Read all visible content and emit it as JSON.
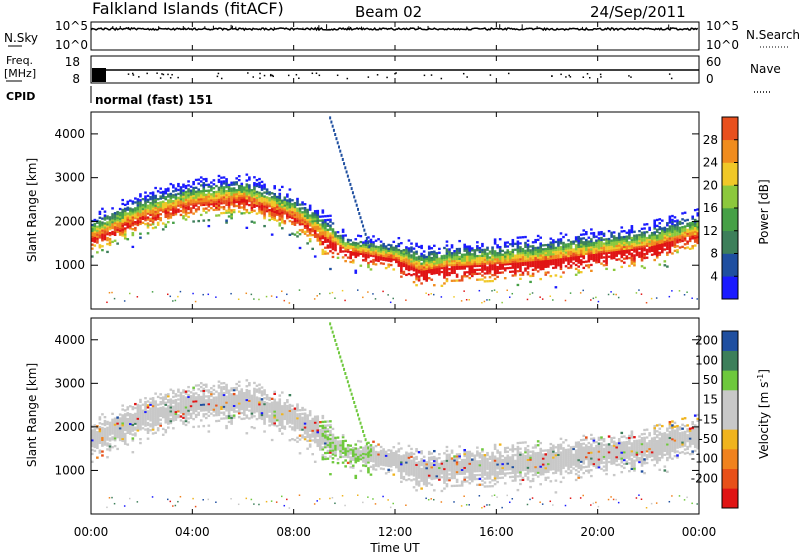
{
  "header": {
    "station": "Falkland Islands (fitACF)",
    "beam": "Beam 02",
    "date": "24/Sep/2011"
  },
  "side_labels": {
    "nsky": "N.Sky",
    "nsearch": "N.Search",
    "freq_line1": "Freq.",
    "freq_line2": "[MHz]",
    "nave": "Nave",
    "cpid": "CPID",
    "cpid_value": "normal (fast) 151"
  },
  "strip_ticks": {
    "noise_left": [
      "10^5",
      "10^0"
    ],
    "noise_right": [
      "10^5",
      "10^0"
    ],
    "freq_left": [
      "18",
      "8"
    ],
    "nave_right": [
      "60",
      "0"
    ]
  },
  "colors": {
    "power_scale": [
      "#1a1aff",
      "#1f4fa0",
      "#3d7f5a",
      "#46a046",
      "#8cc83c",
      "#f0c828",
      "#f08c1e",
      "#e8501e",
      "#e01414"
    ],
    "velocity_scale": [
      "#1a1aff",
      "#1f4fa0",
      "#3d7f5a",
      "#6ec83c",
      "#c8c8c8",
      "#c8c8c8",
      "#f0b41e",
      "#f0821e",
      "#e85018",
      "#e01414"
    ],
    "frame": "#000000"
  },
  "chart_data": [
    {
      "type": "heatmap",
      "name": "power",
      "xlabel": "",
      "ylabel": "Slant Range [km]",
      "xlim": [
        0,
        24
      ],
      "ylim": [
        0,
        4500
      ],
      "yticks": [
        1000,
        2000,
        3000,
        4000
      ],
      "colorbar": {
        "label": "Power [dB]",
        "range": [
          0,
          32
        ],
        "ticks": [
          4,
          8,
          12,
          16,
          20,
          24,
          28
        ]
      },
      "echo_band_center_km": [
        [
          0,
          1750
        ],
        [
          2,
          2250
        ],
        [
          4,
          2550
        ],
        [
          6,
          2650
        ],
        [
          8,
          2250
        ],
        [
          10,
          1450
        ],
        [
          12,
          1250
        ],
        [
          13,
          1000
        ],
        [
          14,
          1100
        ],
        [
          16,
          1150
        ],
        [
          18,
          1250
        ],
        [
          20,
          1400
        ],
        [
          22,
          1550
        ],
        [
          24,
          1850
        ]
      ]
    },
    {
      "type": "heatmap",
      "name": "velocity",
      "xlabel": "Time UT",
      "ylabel": "Slant Range [km]",
      "xlim": [
        0,
        24
      ],
      "ylim": [
        0,
        4500
      ],
      "xtick_labels": [
        "00:00",
        "04:00",
        "08:00",
        "12:00",
        "16:00",
        "20:00",
        "00:00"
      ],
      "yticks": [
        1000,
        2000,
        3000,
        4000
      ],
      "colorbar": {
        "label": "Velocity [m s",
        "label_sup": "-1",
        "label_end": "]",
        "ticks": [
          "200",
          "100",
          "50",
          "15",
          "-15",
          "-50",
          "-100",
          "-200"
        ]
      }
    }
  ]
}
